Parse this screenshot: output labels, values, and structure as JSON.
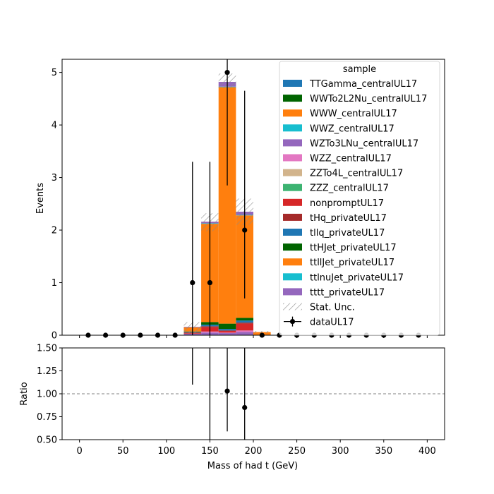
{
  "chart_data": {
    "type": "bar",
    "stacked": true,
    "xlabel": "Mass of had t (GeV)",
    "ylabel_main": "Events",
    "ylabel_ratio": "Ratio",
    "xlim": [
      -20,
      420
    ],
    "ylim_main": [
      0,
      5.25
    ],
    "ylim_ratio": [
      0.5,
      1.5
    ],
    "x_ticks": [
      "0",
      "50",
      "100",
      "150",
      "200",
      "250",
      "300",
      "350",
      "400"
    ],
    "y_ticks_main": [
      "0",
      "1",
      "2",
      "3",
      "4",
      "5"
    ],
    "y_ticks_ratio": [
      "0.50",
      "0.75",
      "1.00",
      "1.25",
      "1.50"
    ],
    "legend_title": "sample",
    "legend_placement": "top-right",
    "bin_edges": [
      120,
      140,
      160,
      180,
      200,
      220
    ],
    "series": [
      {
        "name": "TTGamma_centralUL17",
        "color": "#1f77b4",
        "values": [
          0,
          0,
          0,
          0,
          0
        ]
      },
      {
        "name": "WWTo2L2Nu_centralUL17",
        "color": "#006400",
        "values": [
          0,
          0,
          0,
          0,
          0
        ]
      },
      {
        "name": "WWW_centralUL17",
        "color": "#ff7f0e",
        "values": [
          0,
          0,
          0,
          0,
          0
        ]
      },
      {
        "name": "WWZ_centralUL17",
        "color": "#17becf",
        "values": [
          0,
          0,
          0,
          0,
          0
        ]
      },
      {
        "name": "WZTo3LNu_centralUL17",
        "color": "#9467bd",
        "values": [
          0.03,
          0.05,
          0.04,
          0.06,
          0
        ]
      },
      {
        "name": "WZZ_centralUL17",
        "color": "#e377c2",
        "values": [
          0,
          0.02,
          0.01,
          0.03,
          0
        ]
      },
      {
        "name": "ZZTo4L_centralUL17",
        "color": "#d2b48c",
        "values": [
          0,
          0,
          0,
          0,
          0
        ]
      },
      {
        "name": "ZZZ_centralUL17",
        "color": "#3cb371",
        "values": [
          0,
          0,
          0,
          0,
          0
        ]
      },
      {
        "name": "nonpromptUL17",
        "color": "#d62728",
        "values": [
          0.02,
          0.08,
          0.03,
          0.13,
          0
        ]
      },
      {
        "name": "tHq_privateUL17",
        "color": "#a52a2a",
        "values": [
          0,
          0.02,
          0.01,
          0.02,
          0
        ]
      },
      {
        "name": "tllq_privateUL17",
        "color": "#1f77b4",
        "values": [
          0.01,
          0.03,
          0.03,
          0.04,
          0
        ]
      },
      {
        "name": "ttHJet_privateUL17",
        "color": "#006400",
        "values": [
          0.01,
          0.05,
          0.1,
          0.05,
          0
        ]
      },
      {
        "name": "ttllJet_privateUL17",
        "color": "#ff7f0e",
        "values": [
          0.08,
          1.87,
          4.5,
          1.95,
          0.06
        ]
      },
      {
        "name": "ttlnuJet_privateUL17",
        "color": "#17becf",
        "values": [
          0,
          0.01,
          0.01,
          0.01,
          0
        ]
      },
      {
        "name": "tttt_privateUL17",
        "color": "#9467bd",
        "values": [
          0.01,
          0.03,
          0.09,
          0.06,
          0
        ]
      }
    ],
    "stat_unc": {
      "name": "Stat. Unc.",
      "down": [
        0.04,
        1.98,
        4.7,
        2.1,
        0.04
      ],
      "up": [
        0.25,
        2.32,
        4.98,
        2.6,
        0.08
      ]
    },
    "data": {
      "name": "dataUL17",
      "x": [
        10,
        30,
        50,
        70,
        90,
        110,
        130,
        150,
        170,
        190,
        210,
        230,
        250,
        270,
        290,
        310,
        330,
        350,
        370,
        390
      ],
      "y": [
        0,
        0,
        0,
        0,
        0,
        0,
        1,
        1,
        5,
        2,
        0,
        0,
        0,
        0,
        0,
        0,
        0,
        0,
        0,
        0
      ],
      "err_low": [
        0,
        0,
        0,
        0,
        0,
        0,
        1,
        1,
        2.15,
        1.3,
        0,
        0,
        0,
        0,
        0,
        0,
        0,
        0,
        0,
        0
      ],
      "err_high": [
        0,
        0,
        0,
        0,
        0,
        0,
        2.3,
        2.3,
        3.4,
        2.65,
        0,
        0,
        0,
        0,
        0,
        0,
        0,
        0,
        0,
        0
      ]
    },
    "ratio": {
      "reference": 1.0,
      "x": [
        130,
        150,
        170,
        190
      ],
      "y": [
        null,
        null,
        1.03,
        0.85
      ],
      "err_low": [
        null,
        null,
        0.44,
        0.55
      ],
      "err_high": [
        null,
        null,
        0.7,
        1.15
      ],
      "bars_only": [
        {
          "x": 130,
          "low": 1.1,
          "high": 1.5
        },
        {
          "x": 150,
          "low": 0.5,
          "high": 1.5
        }
      ]
    }
  }
}
